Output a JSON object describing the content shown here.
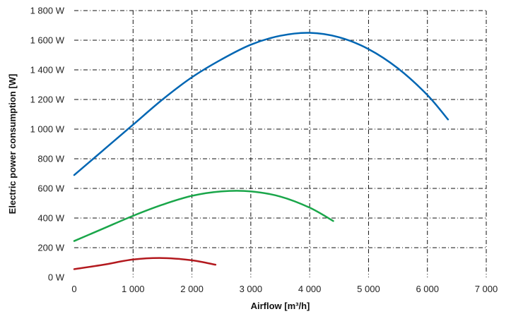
{
  "chart_data": {
    "type": "line",
    "title": "",
    "xlabel": "Airflow [m³/h]",
    "ylabel": "Electric power consumption [W]",
    "xlim": [
      0,
      7000
    ],
    "ylim": [
      0,
      1800
    ],
    "x_ticks": [
      0,
      1000,
      2000,
      3000,
      4000,
      5000,
      6000,
      7000
    ],
    "x_tick_labels": [
      "0",
      "1 000",
      "2 000",
      "3 000",
      "4 000",
      "5 000",
      "6 000",
      "7 000"
    ],
    "y_ticks": [
      0,
      200,
      400,
      600,
      800,
      1000,
      1200,
      1400,
      1600,
      1800
    ],
    "y_tick_labels": [
      "0 W",
      "200 W",
      "400 W",
      "600 W",
      "800 W",
      "1 000 W",
      "1 200 W",
      "1 400 W",
      "1 600 W",
      "1 800 W"
    ],
    "grid": true,
    "legend": "none",
    "series": [
      {
        "color": "#0066b3",
        "x": [
          0,
          500,
          1000,
          1500,
          2000,
          2500,
          3000,
          3500,
          4000,
          4500,
          5000,
          5500,
          6000,
          6350
        ],
        "y": [
          690,
          860,
          1030,
          1200,
          1350,
          1470,
          1570,
          1630,
          1650,
          1620,
          1540,
          1410,
          1230,
          1065
        ]
      },
      {
        "color": "#1aa64a",
        "x": [
          0,
          500,
          1000,
          1500,
          2000,
          2500,
          3000,
          3500,
          4000,
          4400
        ],
        "y": [
          245,
          330,
          415,
          490,
          550,
          580,
          580,
          545,
          470,
          380
        ]
      },
      {
        "color": "#b3191e",
        "x": [
          0,
          500,
          1000,
          1500,
          2000,
          2400
        ],
        "y": [
          55,
          85,
          120,
          130,
          115,
          85
        ]
      }
    ]
  }
}
